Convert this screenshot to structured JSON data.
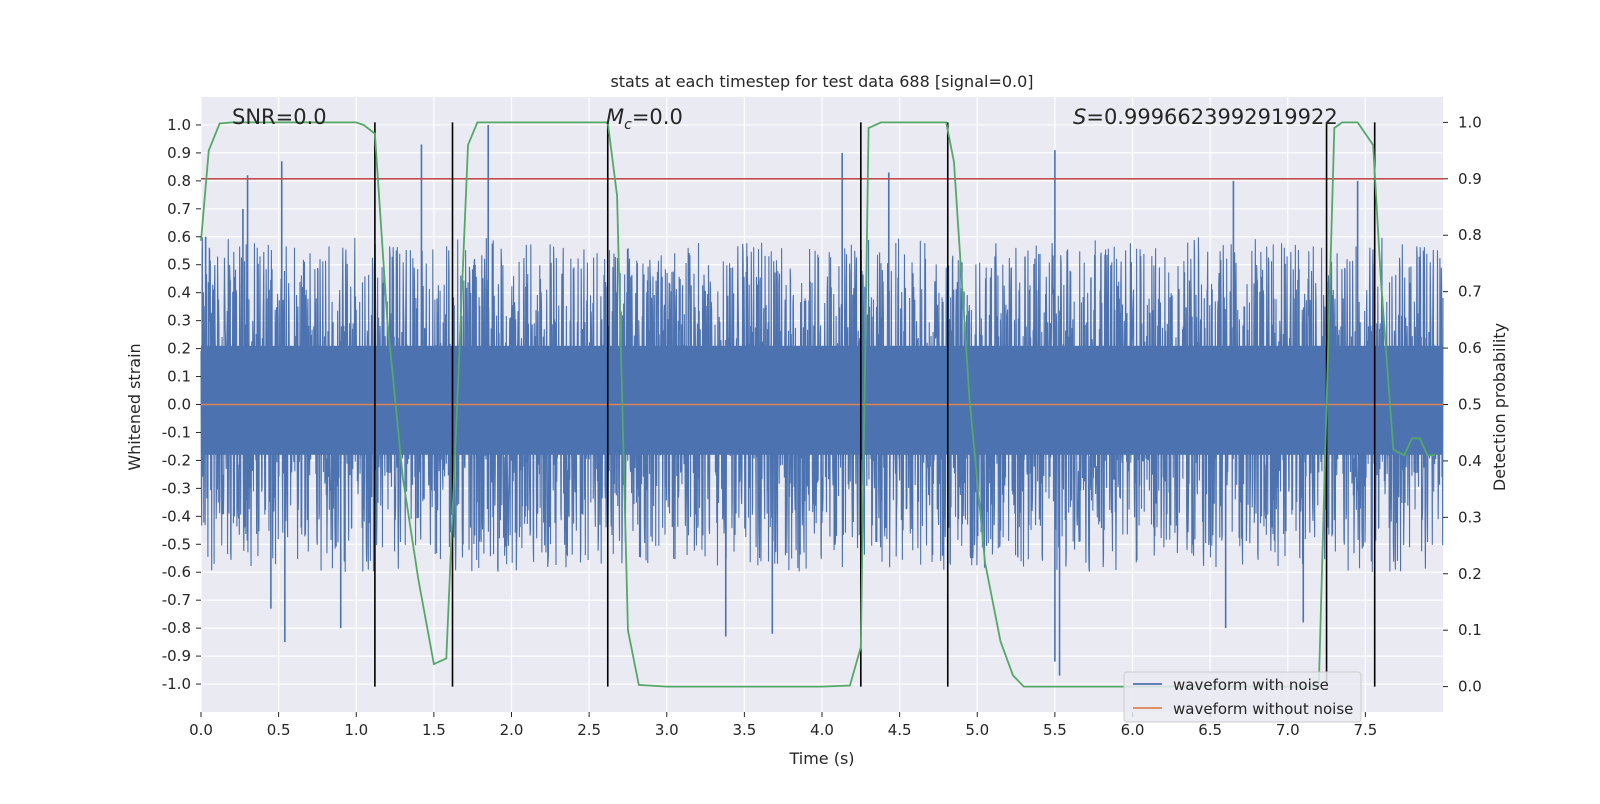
{
  "chart_data": {
    "type": "line",
    "title": "stats at each timestep for test data 688 [signal=0.0]",
    "xlabel": "Time (s)",
    "ylabel_left": "Whitened strain",
    "ylabel_right": "Detection probability",
    "xlim": [
      0.0,
      8.0
    ],
    "ylim_left": [
      -1.1,
      1.1
    ],
    "ylim_right": [
      -0.045,
      1.045
    ],
    "grid": true,
    "legend_position": "bottom-right",
    "x_ticks": [
      "0.0",
      "0.5",
      "1.0",
      "1.5",
      "2.0",
      "2.5",
      "3.0",
      "3.5",
      "4.0",
      "4.5",
      "5.0",
      "5.5",
      "6.0",
      "6.5",
      "7.0",
      "7.5"
    ],
    "y_left_ticks": [
      "1.0",
      "0.9",
      "0.8",
      "0.7",
      "0.6",
      "0.5",
      "0.4",
      "0.3",
      "0.2",
      "0.1",
      "0.0",
      "-0.1",
      "-0.2",
      "-0.3",
      "-0.4",
      "-0.5",
      "-0.6",
      "-0.7",
      "-0.8",
      "-0.9",
      "-1.0"
    ],
    "y_right_ticks": [
      "1.0",
      "0.9",
      "0.8",
      "0.7",
      "0.6",
      "0.5",
      "0.4",
      "0.3",
      "0.2",
      "0.1",
      "0.0"
    ],
    "annotations": {
      "snr": "SNR=0.0",
      "mc_symbol": "M",
      "mc_sub": "c",
      "mc_value": "=0.0",
      "s_symbol": "S",
      "s_value": "=0.9996623992919922"
    },
    "threshold_right": 0.9,
    "detection_boundaries_x": [
      1.12,
      1.62,
      2.62,
      4.25,
      4.81,
      7.25,
      7.56
    ],
    "series": [
      {
        "name": "waveform with noise",
        "color": "#4c72b0",
        "axis": "left",
        "description_kind": "noise",
        "envelope_upper": 0.3,
        "envelope_lower": -0.3,
        "peaks": [
          {
            "x": 0.03,
            "y": 0.6
          },
          {
            "x": 0.27,
            "y": 0.7
          },
          {
            "x": 0.3,
            "y": 0.82
          },
          {
            "x": 0.52,
            "y": 0.87
          },
          {
            "x": 1.42,
            "y": 0.93
          },
          {
            "x": 1.85,
            "y": 1.0
          },
          {
            "x": 4.13,
            "y": 0.9
          },
          {
            "x": 4.43,
            "y": 0.83
          },
          {
            "x": 5.5,
            "y": 0.91
          },
          {
            "x": 6.65,
            "y": 0.8
          },
          {
            "x": 7.45,
            "y": 0.8
          }
        ],
        "troughs": [
          {
            "x": 0.45,
            "y": -0.73
          },
          {
            "x": 0.54,
            "y": -0.85
          },
          {
            "x": 0.9,
            "y": -0.8
          },
          {
            "x": 3.38,
            "y": -0.83
          },
          {
            "x": 3.68,
            "y": -0.82
          },
          {
            "x": 5.5,
            "y": -0.92
          },
          {
            "x": 5.53,
            "y": -0.97
          },
          {
            "x": 6.6,
            "y": -0.8
          },
          {
            "x": 7.1,
            "y": -0.78
          }
        ]
      },
      {
        "name": "waveform without noise",
        "color": "#dd8452",
        "axis": "left",
        "x": [
          0.0,
          8.0
        ],
        "values": [
          0.0,
          0.0
        ]
      },
      {
        "name": "detection probability",
        "color": "#55a868",
        "axis": "right",
        "x": [
          0.0,
          0.05,
          0.12,
          0.2,
          0.5,
          1.0,
          1.05,
          1.12,
          1.2,
          1.3,
          1.4,
          1.5,
          1.58,
          1.65,
          1.72,
          1.78,
          2.0,
          2.5,
          2.62,
          2.68,
          2.75,
          2.82,
          3.0,
          3.5,
          4.0,
          4.18,
          4.25,
          4.3,
          4.38,
          4.5,
          4.8,
          4.85,
          4.95,
          5.05,
          5.15,
          5.23,
          5.3,
          5.5,
          6.0,
          6.5,
          7.0,
          7.2,
          7.25,
          7.3,
          7.35,
          7.45,
          7.55,
          7.6,
          7.68,
          7.75,
          7.8,
          7.85,
          7.9,
          7.95
        ],
        "values": [
          0.79,
          0.95,
          0.998,
          1.0,
          1.0,
          1.0,
          0.995,
          0.98,
          0.65,
          0.37,
          0.19,
          0.04,
          0.05,
          0.5,
          0.96,
          1.0,
          1.0,
          1.0,
          1.0,
          0.87,
          0.1,
          0.003,
          0.0,
          0.0,
          0.0,
          0.002,
          0.07,
          0.99,
          1.0,
          1.0,
          1.0,
          0.93,
          0.51,
          0.22,
          0.08,
          0.02,
          0.0,
          0.0,
          0.0,
          0.0,
          0.0,
          0.0,
          0.5,
          0.99,
          1.0,
          1.0,
          0.96,
          0.72,
          0.42,
          0.41,
          0.44,
          0.44,
          0.41,
          0.41
        ]
      }
    ]
  }
}
